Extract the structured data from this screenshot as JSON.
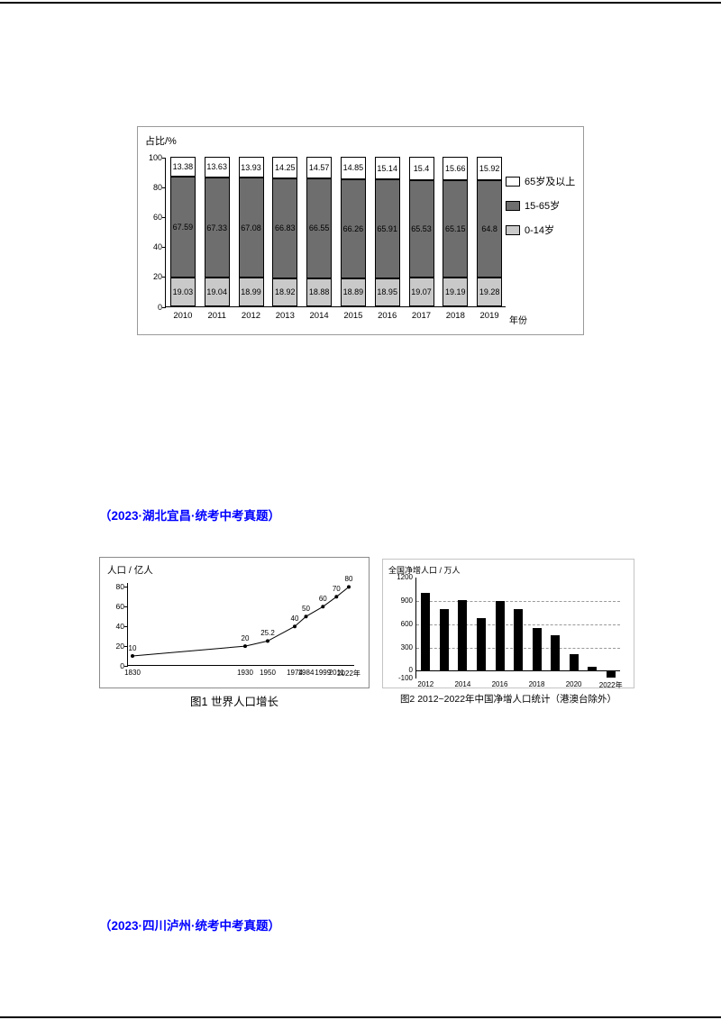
{
  "page": {
    "headings": [
      {
        "text": "（2023·湖北宜昌·统考中考真题）"
      },
      {
        "text": "（2023·四川泸州·统考中考真题）"
      }
    ]
  },
  "chart_data": [
    {
      "type": "bar",
      "subtype": "stacked-percent",
      "ylabel": "占比/%",
      "x_suffix": "年份",
      "yticks": [
        0,
        20,
        40,
        60,
        80,
        100
      ],
      "ylim": [
        0,
        100
      ],
      "grid": false,
      "legend_position": "right",
      "categories": [
        "2010",
        "2011",
        "2012",
        "2013",
        "2014",
        "2015",
        "2016",
        "2017",
        "2018",
        "2019"
      ],
      "series": [
        {
          "name": "0-14岁",
          "color": "#c9c9c9",
          "values": [
            19.03,
            19.04,
            18.99,
            18.92,
            18.88,
            18.89,
            18.95,
            19.07,
            19.19,
            19.28
          ]
        },
        {
          "name": "15-65岁",
          "color": "#6e6e6e",
          "values": [
            67.59,
            67.33,
            67.08,
            66.83,
            66.55,
            66.26,
            65.91,
            65.53,
            65.15,
            64.8
          ]
        },
        {
          "name": "65岁及以上",
          "color": "#ffffff",
          "values": [
            13.38,
            13.63,
            13.93,
            14.25,
            14.57,
            14.85,
            15.14,
            15.4,
            15.66,
            15.92
          ]
        }
      ],
      "legend": [
        {
          "label": "65岁及以上",
          "color": "#ffffff"
        },
        {
          "label": "15-65岁",
          "color": "#6e6e6e"
        },
        {
          "label": "0-14岁",
          "color": "#c9c9c9"
        }
      ]
    },
    {
      "type": "line",
      "title": "图1 世界人口增长",
      "ylabel": "人口 / 亿人",
      "yticks": [
        0,
        20,
        40,
        60,
        80
      ],
      "ylim": [
        0,
        84
      ],
      "grid": false,
      "x": [
        1830,
        1930,
        1950,
        1974,
        1984,
        1999,
        2011,
        2022
      ],
      "values": [
        10,
        20,
        25.2,
        40,
        50,
        60,
        70,
        80
      ],
      "point_labels": [
        "10",
        "20",
        "25.2",
        "40",
        "50",
        "60",
        "70",
        "80"
      ],
      "xticklabels": [
        "1830",
        "1930",
        "1950",
        "1974",
        "1984",
        "1999",
        "2011",
        "2022年"
      ]
    },
    {
      "type": "bar",
      "title": "图2 2012~2022年中国净增人口统计（港澳台除外）",
      "ylabel": "全国净增人口 / 万人",
      "yticks": [
        1200,
        900,
        600,
        300,
        0,
        -100
      ],
      "ylim": [
        -100,
        1200
      ],
      "grid": "dashed-horizontal",
      "bar_color": "#000000",
      "categories": [
        "2012",
        "2013",
        "2014",
        "2015",
        "2016",
        "2017",
        "2018",
        "2019",
        "2020",
        "2021",
        "2022"
      ],
      "values": [
        1000,
        800,
        910,
        680,
        900,
        790,
        550,
        460,
        210,
        50,
        -85
      ],
      "xticklabels": [
        "2012",
        "",
        "2014",
        "",
        "2016",
        "",
        "2018",
        "",
        "2020",
        "",
        "2022年"
      ]
    }
  ]
}
